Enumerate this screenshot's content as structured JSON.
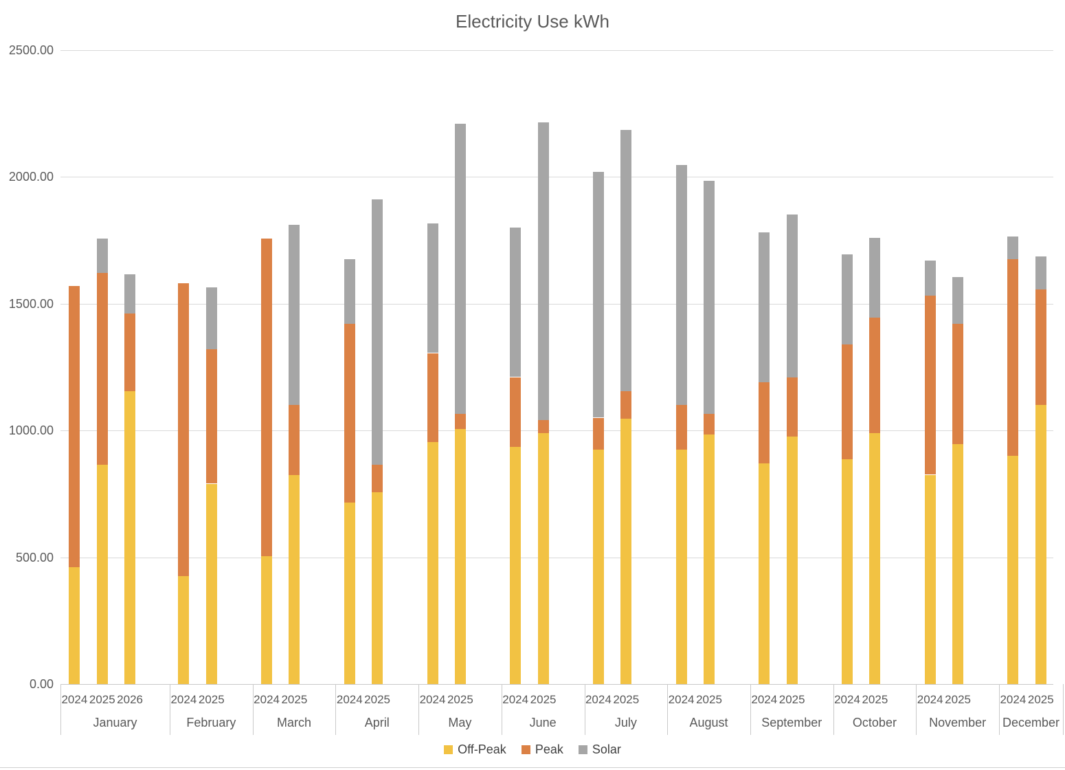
{
  "title": "Electricity Use kWh",
  "unit": "kWh",
  "colors": {
    "off_peak": "#F2C243",
    "peak": "#DB8145",
    "solar": "#A6A6A6",
    "gridline": "#D9D9D9",
    "axis_line": "#C9C9C9",
    "text": "#595959"
  },
  "y_axis": {
    "min": 0,
    "max": 2500,
    "step": 500,
    "tick_labels": [
      "0.00",
      "500.00",
      "1000.00",
      "1500.00",
      "2000.00",
      "2500.00"
    ]
  },
  "legend": [
    {
      "label": "Off-Peak",
      "color": "#F2C243"
    },
    {
      "label": "Peak",
      "color": "#DB8145"
    },
    {
      "label": "Solar",
      "color": "#A6A6A6"
    }
  ],
  "chart_data": {
    "type": "bar",
    "stacked": true,
    "title": "Electricity Use kWh",
    "ylabel": "kWh",
    "ylim": [
      0,
      2500
    ],
    "grid": true,
    "legend_position": "bottom",
    "series_names": [
      "Off-Peak",
      "Peak",
      "Solar"
    ],
    "months": [
      {
        "label": "January",
        "bars": [
          {
            "year": "2024",
            "off_peak": 460,
            "peak": 1110,
            "solar": 0
          },
          {
            "year": "2025",
            "off_peak": 865,
            "peak": 755,
            "solar": 135
          },
          {
            "year": "2026",
            "off_peak": 1155,
            "peak": 305,
            "solar": 155
          }
        ]
      },
      {
        "label": "February",
        "bars": [
          {
            "year": "2024",
            "off_peak": 425,
            "peak": 1155,
            "solar": 0
          },
          {
            "year": "2025",
            "off_peak": 790,
            "peak": 530,
            "solar": 245
          }
        ]
      },
      {
        "label": "March",
        "bars": [
          {
            "year": "2024",
            "off_peak": 505,
            "peak": 1250,
            "solar": 0
          },
          {
            "year": "2025",
            "off_peak": 825,
            "peak": 275,
            "solar": 710
          }
        ]
      },
      {
        "label": "April",
        "bars": [
          {
            "year": "2024",
            "off_peak": 715,
            "peak": 705,
            "solar": 255
          },
          {
            "year": "2025",
            "off_peak": 755,
            "peak": 110,
            "solar": 1045
          }
        ]
      },
      {
        "label": "May",
        "bars": [
          {
            "year": "2024",
            "off_peak": 955,
            "peak": 350,
            "solar": 510
          },
          {
            "year": "2025",
            "off_peak": 1005,
            "peak": 60,
            "solar": 1145
          }
        ]
      },
      {
        "label": "June",
        "bars": [
          {
            "year": "2024",
            "off_peak": 935,
            "peak": 275,
            "solar": 590
          },
          {
            "year": "2025",
            "off_peak": 990,
            "peak": 50,
            "solar": 1175
          }
        ]
      },
      {
        "label": "July",
        "bars": [
          {
            "year": "2024",
            "off_peak": 925,
            "peak": 125,
            "solar": 970
          },
          {
            "year": "2025",
            "off_peak": 1045,
            "peak": 110,
            "solar": 1030
          }
        ]
      },
      {
        "label": "August",
        "bars": [
          {
            "year": "2024",
            "off_peak": 925,
            "peak": 175,
            "solar": 945
          },
          {
            "year": "2025",
            "off_peak": 985,
            "peak": 80,
            "solar": 920
          }
        ]
      },
      {
        "label": "September",
        "bars": [
          {
            "year": "2024",
            "off_peak": 870,
            "peak": 320,
            "solar": 590
          },
          {
            "year": "2025",
            "off_peak": 975,
            "peak": 235,
            "solar": 640
          }
        ]
      },
      {
        "label": "October",
        "bars": [
          {
            "year": "2024",
            "off_peak": 885,
            "peak": 455,
            "solar": 355
          },
          {
            "year": "2025",
            "off_peak": 990,
            "peak": 455,
            "solar": 315
          }
        ]
      },
      {
        "label": "November",
        "bars": [
          {
            "year": "2024",
            "off_peak": 825,
            "peak": 705,
            "solar": 140
          },
          {
            "year": "2025",
            "off_peak": 945,
            "peak": 475,
            "solar": 185
          }
        ]
      },
      {
        "label": "December",
        "bars": [
          {
            "year": "2024",
            "off_peak": 900,
            "peak": 775,
            "solar": 90
          },
          {
            "year": "2025",
            "off_peak": 1100,
            "peak": 455,
            "solar": 130
          }
        ]
      }
    ]
  }
}
